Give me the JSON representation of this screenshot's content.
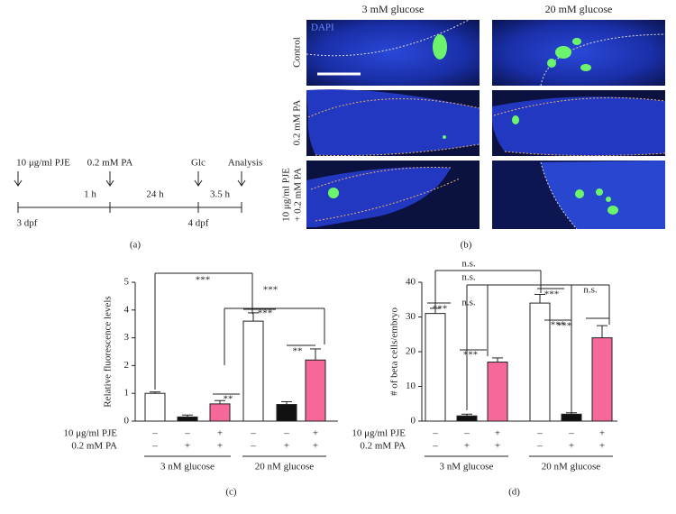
{
  "timeline": {
    "events": [
      "10 μg/ml PJE",
      "0.2 mM PA",
      "Glc",
      "Analysis"
    ],
    "intervals": [
      "1 h",
      "24 h",
      "3.5 h"
    ],
    "days": [
      "3 dpf",
      "4 dpf"
    ],
    "panel": "(a)"
  },
  "images": {
    "columns": [
      "3 mM glucose",
      "20 mM glucose"
    ],
    "rows": [
      "Control",
      "0.2 mM PA",
      [
        "10 μg/ml PJE",
        "+ 0.2 mM PA"
      ]
    ],
    "stain": "DAPI",
    "panel": "(b)"
  },
  "chart_data": [
    {
      "type": "bar",
      "panel": "(c)",
      "y_label": "Relative fluorescence levels",
      "values": [
        1.0,
        0.15,
        0.62,
        3.6,
        0.6,
        2.2
      ],
      "errors": [
        0.05,
        0.07,
        0.12,
        0.3,
        0.1,
        0.4
      ],
      "colors": [
        "#ffffff",
        "#111111",
        "#f7689a",
        "#ffffff",
        "#111111",
        "#f7689a"
      ],
      "ylim": [
        0,
        5
      ],
      "yticks": [
        0,
        1,
        2,
        3,
        4,
        5
      ],
      "rows": [
        {
          "name": "10 μg/ml PJE",
          "signs": [
            "–",
            "–",
            "+",
            "–",
            "–",
            "+"
          ]
        },
        {
          "name": "0.2 mM PA",
          "signs": [
            "–",
            "+",
            "+",
            "–",
            "+",
            "+"
          ]
        }
      ],
      "groups": [
        "3 nM glucose",
        "20 nM glucose"
      ],
      "annotations": [
        "***",
        "***",
        "***",
        "**",
        "**"
      ]
    },
    {
      "type": "bar",
      "panel": "(d)",
      "y_label": "# of beta cells/embryo",
      "values": [
        31,
        1.5,
        17,
        34,
        2,
        24
      ],
      "errors": [
        1.5,
        0.5,
        1.2,
        2.5,
        0.4,
        3.5
      ],
      "colors": [
        "#ffffff",
        "#111111",
        "#f7689a",
        "#ffffff",
        "#111111",
        "#f7689a"
      ],
      "ylim": [
        0,
        40
      ],
      "yticks": [
        0,
        10,
        20,
        30,
        40
      ],
      "rows": [
        {
          "name": "10 μg/ml PJE",
          "signs": [
            "–",
            "–",
            "+",
            "–",
            "–",
            "+"
          ]
        },
        {
          "name": "0.2 mM PA",
          "signs": [
            "–",
            "+",
            "+",
            "–",
            "+",
            "+"
          ]
        }
      ],
      "groups": [
        "3 nM glucose",
        "20 nM glucose"
      ],
      "annotations": [
        "n.s.",
        "n.s.",
        "n.s.",
        "***",
        "***",
        "***",
        "***",
        "n.s.",
        "***"
      ]
    }
  ]
}
